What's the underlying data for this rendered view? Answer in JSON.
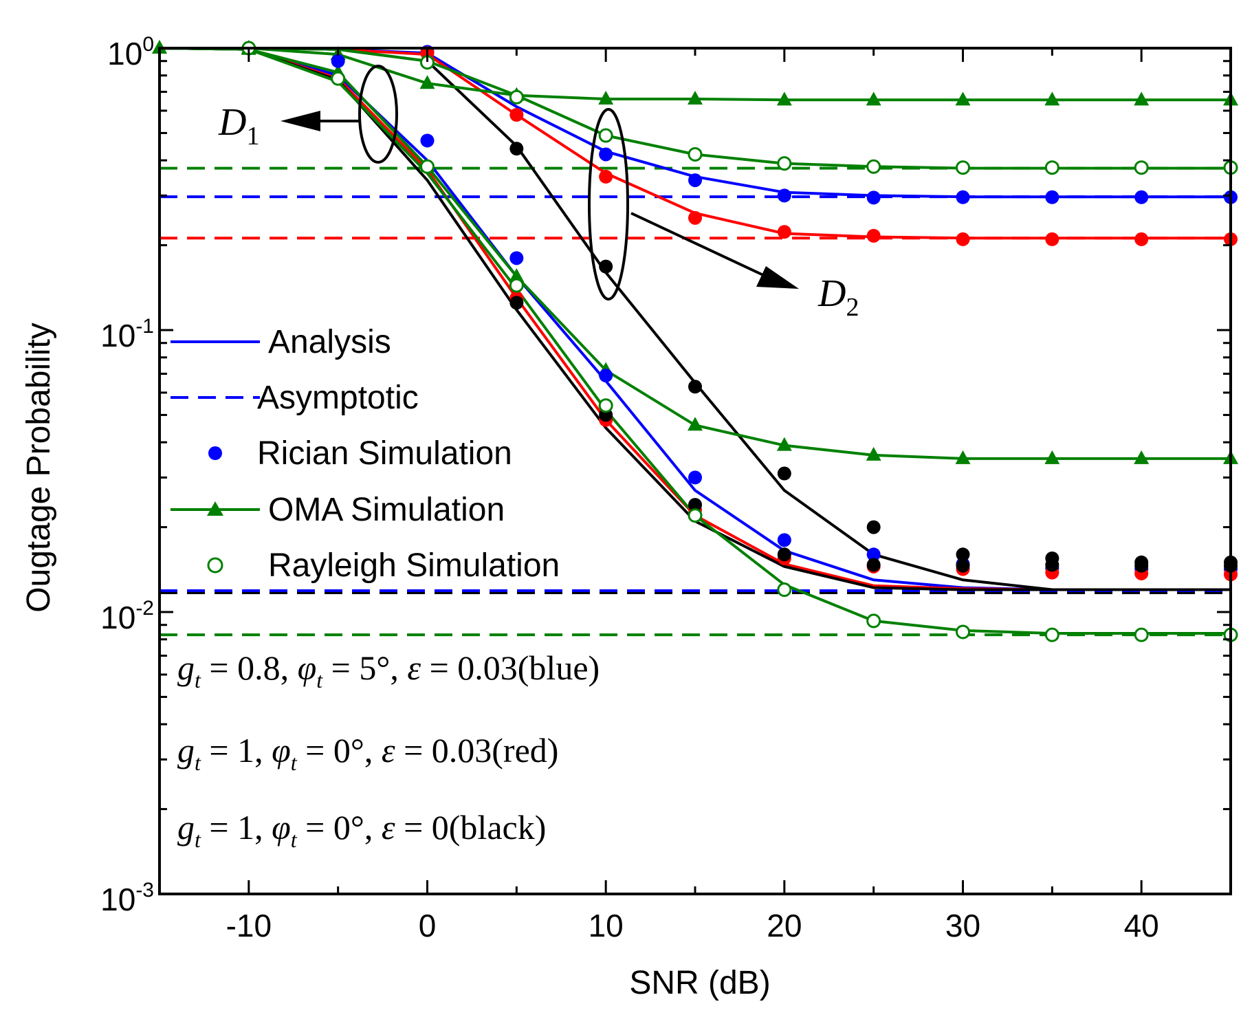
{
  "chart_data": {
    "type": "line",
    "yscale": "log",
    "xlabel": "SNR (dB)",
    "ylabel": "Ougtage Probability",
    "xlim": [
      -15,
      45
    ],
    "ylim": [
      0.001,
      1
    ],
    "x_ticks": [
      -10,
      0,
      10,
      20,
      30,
      40
    ],
    "y_ticks": [
      {
        "value": 1,
        "base": "10",
        "exp": "0"
      },
      {
        "value": 0.1,
        "base": "10",
        "exp": "-1"
      },
      {
        "value": 0.01,
        "base": "10",
        "exp": "-2"
      },
      {
        "value": 0.001,
        "base": "10",
        "exp": "-3"
      }
    ],
    "colors": {
      "blue": "#0000ff",
      "red": "#ff0000",
      "black": "#000000",
      "green": "#008000"
    },
    "analysis": [
      {
        "name": "D1 blue",
        "color": "blue",
        "x": [
          -15,
          -10,
          -5,
          0,
          5,
          10,
          15,
          20,
          25,
          30,
          35,
          40,
          45
        ],
        "y": [
          1,
          0.99,
          0.8,
          0.4,
          0.155,
          0.066,
          0.027,
          0.0165,
          0.013,
          0.0122,
          0.012,
          0.012,
          0.012
        ]
      },
      {
        "name": "D1 red",
        "color": "red",
        "x": [
          -15,
          -10,
          -5,
          0,
          5,
          10,
          15,
          20,
          25,
          30,
          35,
          40,
          45
        ],
        "y": [
          1,
          0.99,
          0.78,
          0.37,
          0.13,
          0.048,
          0.022,
          0.0148,
          0.0124,
          0.0121,
          0.012,
          0.012,
          0.012
        ]
      },
      {
        "name": "D1 black",
        "color": "black",
        "x": [
          -15,
          -10,
          -5,
          0,
          5,
          10,
          15,
          20,
          25,
          30,
          35,
          40,
          45
        ],
        "y": [
          1,
          0.99,
          0.77,
          0.34,
          0.118,
          0.045,
          0.021,
          0.0145,
          0.0122,
          0.012,
          0.012,
          0.012,
          0.012
        ]
      },
      {
        "name": "D1 rayleigh",
        "color": "green",
        "x": [
          -15,
          -10,
          -5,
          0,
          5,
          10,
          15,
          20,
          25,
          30,
          35,
          40,
          45
        ],
        "y": [
          1,
          0.99,
          0.76,
          0.36,
          0.14,
          0.052,
          0.022,
          0.0125,
          0.0093,
          0.0086,
          0.0084,
          0.0084,
          0.0084
        ]
      },
      {
        "name": "D2 blue",
        "color": "blue",
        "x": [
          -15,
          -10,
          -5,
          0,
          5,
          10,
          15,
          20,
          25,
          30,
          35,
          40,
          45
        ],
        "y": [
          1,
          1,
          0.99,
          0.96,
          0.62,
          0.43,
          0.35,
          0.308,
          0.3,
          0.297,
          0.297,
          0.297,
          0.297
        ]
      },
      {
        "name": "D2 red",
        "color": "red",
        "x": [
          -15,
          -10,
          -5,
          0,
          5,
          10,
          15,
          20,
          25,
          30,
          35,
          40,
          45
        ],
        "y": [
          1,
          1,
          0.99,
          0.95,
          0.58,
          0.36,
          0.26,
          0.22,
          0.214,
          0.212,
          0.212,
          0.212,
          0.212
        ]
      },
      {
        "name": "D2 black",
        "color": "black",
        "x": [
          -15,
          -10,
          -5,
          0,
          5,
          10,
          15,
          20,
          25,
          30,
          35,
          40,
          45
        ],
        "y": [
          1,
          1,
          0.99,
          0.9,
          0.45,
          0.16,
          0.065,
          0.027,
          0.016,
          0.013,
          0.012,
          0.012,
          0.012
        ]
      },
      {
        "name": "D2 rayleigh",
        "color": "green",
        "x": [
          -15,
          -10,
          -5,
          0,
          5,
          10,
          15,
          20,
          25,
          30,
          35,
          40,
          45
        ],
        "y": [
          1,
          1,
          0.99,
          0.9,
          0.68,
          0.49,
          0.42,
          0.39,
          0.38,
          0.375,
          0.375,
          0.375,
          0.375
        ]
      }
    ],
    "asymptotic": [
      {
        "name": "rayleigh D2 floor",
        "color": "green",
        "y": 0.375
      },
      {
        "name": "blue D2 floor",
        "color": "blue",
        "y": 0.297
      },
      {
        "name": "red D2 floor",
        "color": "red",
        "y": 0.212
      },
      {
        "name": "D1 floor (black)",
        "color": "black",
        "y": 0.0117
      },
      {
        "name": "D1 floor (blue)",
        "color": "blue",
        "y": 0.0119
      },
      {
        "name": "rayleigh D1 floor",
        "color": "green",
        "y": 0.0083
      }
    ],
    "oma": [
      {
        "name": "OMA D2",
        "x": [
          -15,
          -10,
          -5,
          0,
          5,
          10,
          15,
          20,
          25,
          30,
          35,
          40,
          45
        ],
        "y": [
          1,
          1,
          0.95,
          0.75,
          0.68,
          0.66,
          0.66,
          0.655,
          0.655,
          0.655,
          0.655,
          0.655,
          0.655
        ]
      },
      {
        "name": "OMA D1",
        "x": [
          -15,
          -10,
          -5,
          0,
          5,
          10,
          15,
          20,
          25,
          30,
          35,
          40,
          45
        ],
        "y": [
          1,
          0.99,
          0.82,
          0.38,
          0.155,
          0.072,
          0.046,
          0.039,
          0.036,
          0.035,
          0.035,
          0.035,
          0.035
        ]
      }
    ],
    "rician_points": [
      {
        "name": "D1 blue",
        "color": "blue",
        "x": [
          -5,
          0,
          5,
          10,
          15,
          20,
          25,
          30,
          35,
          40,
          45
        ],
        "y": [
          0.9,
          0.47,
          0.18,
          0.069,
          0.03,
          0.018,
          0.016,
          0.0148,
          0.0143,
          0.0142,
          0.0142
        ]
      },
      {
        "name": "D1 red",
        "color": "red",
        "x": [
          5,
          10,
          15,
          20,
          25,
          30,
          35,
          40,
          45
        ],
        "y": [
          0.13,
          0.048,
          0.023,
          0.0155,
          0.0145,
          0.0142,
          0.0138,
          0.0137,
          0.0136
        ]
      },
      {
        "name": "D1 black",
        "color": "black",
        "x": [
          5,
          10,
          15,
          20,
          25,
          30,
          35,
          40,
          45
        ],
        "y": [
          0.125,
          0.05,
          0.024,
          0.016,
          0.0147,
          0.0146,
          0.0147,
          0.0146,
          0.0146
        ]
      },
      {
        "name": "D2 blue",
        "color": "blue",
        "x": [
          0,
          10,
          15,
          20,
          25,
          30,
          35,
          40,
          45
        ],
        "y": [
          0.97,
          0.42,
          0.34,
          0.3,
          0.295,
          0.296,
          0.296,
          0.296,
          0.296
        ]
      },
      {
        "name": "D2 red",
        "color": "red",
        "x": [
          0,
          5,
          10,
          15,
          20,
          25,
          30,
          35,
          40,
          45
        ],
        "y": [
          0.96,
          0.58,
          0.35,
          0.25,
          0.223,
          0.216,
          0.21,
          0.21,
          0.21,
          0.21
        ]
      },
      {
        "name": "D2 black",
        "color": "black",
        "x": [
          5,
          10,
          15,
          20,
          25,
          30,
          35,
          40,
          45
        ],
        "y": [
          0.44,
          0.168,
          0.063,
          0.031,
          0.02,
          0.016,
          0.0155,
          0.015,
          0.015
        ]
      }
    ],
    "rayleigh_points": [
      {
        "name": "D1 rayleigh",
        "x": [
          -10,
          -5,
          0,
          5,
          10,
          15,
          20,
          25,
          30,
          35,
          40,
          45
        ],
        "y": [
          1,
          0.78,
          0.38,
          0.144,
          0.054,
          0.022,
          0.012,
          0.0093,
          0.0085,
          0.0083,
          0.0083,
          0.0083
        ]
      },
      {
        "name": "D2 rayleigh",
        "x": [
          0,
          5,
          10,
          15,
          20,
          25,
          30,
          35,
          40,
          45
        ],
        "y": [
          0.89,
          0.67,
          0.49,
          0.42,
          0.39,
          0.38,
          0.377,
          0.377,
          0.377,
          0.377
        ]
      }
    ],
    "annotations": {
      "d1": {
        "base": "D",
        "sub": "1"
      },
      "d2": {
        "base": "D",
        "sub": "2"
      }
    },
    "legend": [
      {
        "label": "Analysis",
        "kind": "line",
        "color": "blue"
      },
      {
        "label": "Asymptotic",
        "kind": "dash",
        "color": "blue"
      },
      {
        "label": "Rician Simulation",
        "kind": "dot",
        "color": "blue"
      },
      {
        "label": "OMA Simulation",
        "kind": "triangle-line",
        "color": "green"
      },
      {
        "label": "Rayleigh Simulation",
        "kind": "circle",
        "color": "green"
      }
    ],
    "parameter_notes": [
      {
        "g": "g",
        "g_sub": "t",
        "phi": "φ",
        "phi_sub": "t",
        "eps": "ε",
        "g_val": "0.8",
        "phi_val": "5°",
        "eps_val": "0.03",
        "color_word": "blue"
      },
      {
        "g": "g",
        "g_sub": "t",
        "phi": "φ",
        "phi_sub": "t",
        "eps": "ε",
        "g_val": "1",
        "phi_val": "0°",
        "eps_val": "0.03",
        "color_word": "red"
      },
      {
        "g": "g",
        "g_sub": "t",
        "phi": "φ",
        "phi_sub": "t",
        "eps": "ε",
        "g_val": "1",
        "phi_val": "0°",
        "eps_val": "0",
        "color_word": "black"
      }
    ]
  }
}
